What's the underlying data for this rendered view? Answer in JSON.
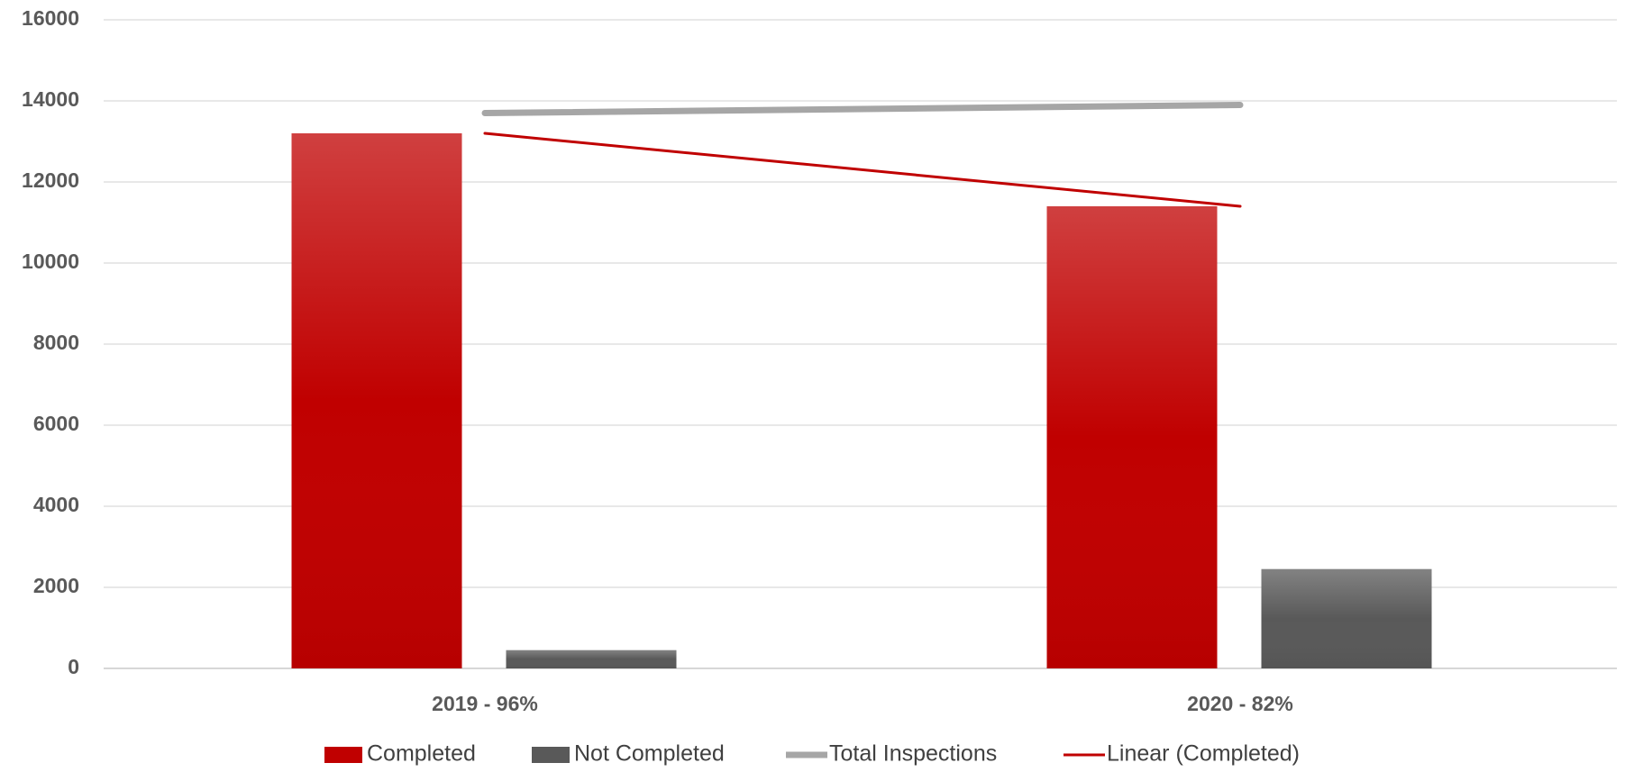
{
  "chart_data": {
    "type": "bar",
    "categories": [
      "2019 - 96%",
      "2020 - 82%"
    ],
    "series": [
      {
        "name": "Completed",
        "type": "bar",
        "color": "#c00000",
        "values": [
          13200,
          11400
        ]
      },
      {
        "name": "Not Completed",
        "type": "bar",
        "color": "#595959",
        "values": [
          450,
          2450
        ]
      },
      {
        "name": "Total Inspections",
        "type": "line",
        "color": "#a6a6a6",
        "values": [
          13700,
          13900
        ]
      },
      {
        "name": "Linear (Completed)",
        "type": "line",
        "color": "#c00000",
        "values": [
          13200,
          11400
        ]
      }
    ],
    "ylim": [
      0,
      16000
    ],
    "yticks": [
      0,
      2000,
      4000,
      6000,
      8000,
      10000,
      12000,
      14000,
      16000
    ],
    "grid": true,
    "legend": "bottom"
  }
}
